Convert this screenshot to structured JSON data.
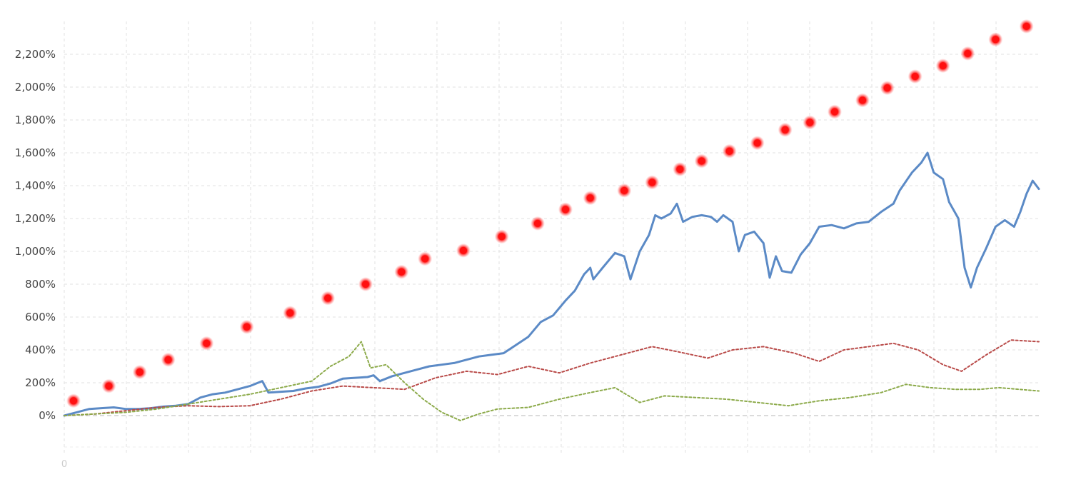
{
  "chart_data": {
    "type": "line",
    "title": "",
    "xlabel": "",
    "ylabel": "",
    "grid": true,
    "ylim": [
      -200,
      2400
    ],
    "xlim": [
      0,
      15.75
    ],
    "x_tick_labels": [
      "0"
    ],
    "y_ticks": [
      {
        "value": 0,
        "label": "0%"
      },
      {
        "value": 200,
        "label": "200%"
      },
      {
        "value": 400,
        "label": "400%"
      },
      {
        "value": 600,
        "label": "600%"
      },
      {
        "value": 800,
        "label": "800%"
      },
      {
        "value": 1000,
        "label": "1,000%"
      },
      {
        "value": 1200,
        "label": "1,200%"
      },
      {
        "value": 1400,
        "label": "1,400%"
      },
      {
        "value": 1600,
        "label": "1,600%"
      },
      {
        "value": 1800,
        "label": "1,800%"
      },
      {
        "value": 2000,
        "label": "2,000%"
      },
      {
        "value": 2200,
        "label": "2,200%"
      }
    ],
    "series": [
      {
        "kind": "solid-line",
        "color": "#5b8ac6",
        "points": [
          [
            0,
            0
          ],
          [
            0.2,
            20
          ],
          [
            0.4,
            40
          ],
          [
            0.6,
            45
          ],
          [
            0.8,
            50
          ],
          [
            1.0,
            40
          ],
          [
            1.2,
            40
          ],
          [
            1.4,
            45
          ],
          [
            1.6,
            55
          ],
          [
            1.8,
            60
          ],
          [
            2.0,
            70
          ],
          [
            2.2,
            110
          ],
          [
            2.4,
            130
          ],
          [
            2.6,
            140
          ],
          [
            2.8,
            160
          ],
          [
            3.0,
            180
          ],
          [
            3.1,
            195
          ],
          [
            3.2,
            210
          ],
          [
            3.3,
            140
          ],
          [
            3.5,
            145
          ],
          [
            3.7,
            150
          ],
          [
            3.9,
            165
          ],
          [
            4.1,
            175
          ],
          [
            4.3,
            195
          ],
          [
            4.5,
            225
          ],
          [
            4.7,
            230
          ],
          [
            4.9,
            235
          ],
          [
            5.0,
            245
          ],
          [
            5.1,
            210
          ],
          [
            5.3,
            240
          ],
          [
            5.5,
            260
          ],
          [
            5.7,
            280
          ],
          [
            5.9,
            300
          ],
          [
            6.1,
            310
          ],
          [
            6.3,
            320
          ],
          [
            6.5,
            340
          ],
          [
            6.7,
            360
          ],
          [
            6.9,
            370
          ],
          [
            7.1,
            380
          ],
          [
            7.3,
            430
          ],
          [
            7.5,
            480
          ],
          [
            7.7,
            570
          ],
          [
            7.9,
            610
          ],
          [
            8.1,
            700
          ],
          [
            8.25,
            760
          ],
          [
            8.4,
            860
          ],
          [
            8.5,
            900
          ],
          [
            8.55,
            830
          ],
          [
            8.7,
            900
          ],
          [
            8.9,
            990
          ],
          [
            9.05,
            970
          ],
          [
            9.15,
            830
          ],
          [
            9.3,
            1000
          ],
          [
            9.45,
            1100
          ],
          [
            9.55,
            1220
          ],
          [
            9.65,
            1200
          ],
          [
            9.8,
            1230
          ],
          [
            9.9,
            1290
          ],
          [
            10.0,
            1180
          ],
          [
            10.15,
            1210
          ],
          [
            10.3,
            1220
          ],
          [
            10.45,
            1210
          ],
          [
            10.55,
            1180
          ],
          [
            10.65,
            1220
          ],
          [
            10.8,
            1180
          ],
          [
            10.9,
            1000
          ],
          [
            11.0,
            1100
          ],
          [
            11.15,
            1120
          ],
          [
            11.3,
            1050
          ],
          [
            11.4,
            840
          ],
          [
            11.5,
            970
          ],
          [
            11.6,
            880
          ],
          [
            11.75,
            870
          ],
          [
            11.9,
            980
          ],
          [
            12.05,
            1050
          ],
          [
            12.2,
            1150
          ],
          [
            12.4,
            1160
          ],
          [
            12.6,
            1140
          ],
          [
            12.8,
            1170
          ],
          [
            13.0,
            1180
          ],
          [
            13.2,
            1240
          ],
          [
            13.4,
            1290
          ],
          [
            13.5,
            1370
          ],
          [
            13.7,
            1480
          ],
          [
            13.85,
            1540
          ],
          [
            13.95,
            1600
          ],
          [
            14.05,
            1480
          ],
          [
            14.2,
            1440
          ],
          [
            14.3,
            1300
          ],
          [
            14.45,
            1200
          ],
          [
            14.55,
            900
          ],
          [
            14.65,
            780
          ],
          [
            14.75,
            900
          ],
          [
            14.9,
            1020
          ],
          [
            15.05,
            1150
          ],
          [
            15.2,
            1190
          ],
          [
            15.35,
            1150
          ],
          [
            15.45,
            1240
          ],
          [
            15.55,
            1350
          ],
          [
            15.65,
            1430
          ],
          [
            15.75,
            1380
          ]
        ]
      },
      {
        "kind": "dotted-line",
        "color": "#b94a48",
        "points": [
          [
            0,
            0
          ],
          [
            0.5,
            10
          ],
          [
            1.0,
            30
          ],
          [
            1.5,
            50
          ],
          [
            2.0,
            60
          ],
          [
            2.5,
            55
          ],
          [
            3.0,
            60
          ],
          [
            3.5,
            100
          ],
          [
            4.0,
            150
          ],
          [
            4.5,
            180
          ],
          [
            5.0,
            170
          ],
          [
            5.5,
            160
          ],
          [
            6.0,
            230
          ],
          [
            6.5,
            270
          ],
          [
            7.0,
            250
          ],
          [
            7.5,
            300
          ],
          [
            8.0,
            260
          ],
          [
            8.5,
            320
          ],
          [
            9.0,
            370
          ],
          [
            9.5,
            420
          ],
          [
            9.9,
            390
          ],
          [
            10.4,
            350
          ],
          [
            10.8,
            400
          ],
          [
            11.3,
            420
          ],
          [
            11.8,
            380
          ],
          [
            12.2,
            330
          ],
          [
            12.6,
            400
          ],
          [
            13.0,
            420
          ],
          [
            13.4,
            440
          ],
          [
            13.8,
            400
          ],
          [
            14.2,
            310
          ],
          [
            14.5,
            270
          ],
          [
            14.9,
            370
          ],
          [
            15.3,
            460
          ],
          [
            15.75,
            450
          ]
        ]
      },
      {
        "kind": "dotted-line",
        "color": "#8caa4a",
        "points": [
          [
            0,
            0
          ],
          [
            0.5,
            10
          ],
          [
            1.0,
            20
          ],
          [
            1.5,
            40
          ],
          [
            2.0,
            70
          ],
          [
            2.5,
            100
          ],
          [
            3.0,
            130
          ],
          [
            3.5,
            170
          ],
          [
            4.0,
            210
          ],
          [
            4.3,
            300
          ],
          [
            4.6,
            360
          ],
          [
            4.8,
            450
          ],
          [
            4.95,
            290
          ],
          [
            5.2,
            310
          ],
          [
            5.5,
            200
          ],
          [
            5.8,
            100
          ],
          [
            6.1,
            20
          ],
          [
            6.4,
            -30
          ],
          [
            6.7,
            10
          ],
          [
            7.0,
            40
          ],
          [
            7.5,
            50
          ],
          [
            8.0,
            100
          ],
          [
            8.5,
            140
          ],
          [
            8.9,
            170
          ],
          [
            9.3,
            80
          ],
          [
            9.7,
            120
          ],
          [
            10.2,
            110
          ],
          [
            10.7,
            100
          ],
          [
            11.2,
            80
          ],
          [
            11.7,
            60
          ],
          [
            12.2,
            90
          ],
          [
            12.7,
            110
          ],
          [
            13.2,
            140
          ],
          [
            13.6,
            190
          ],
          [
            14.0,
            170
          ],
          [
            14.4,
            160
          ],
          [
            14.8,
            160
          ],
          [
            15.1,
            170
          ],
          [
            15.75,
            150
          ]
        ]
      },
      {
        "kind": "markers",
        "color": "#ff1010",
        "points": [
          [
            0.15,
            90
          ],
          [
            0.72,
            180
          ],
          [
            1.22,
            265
          ],
          [
            1.68,
            340
          ],
          [
            2.3,
            440
          ],
          [
            2.95,
            540
          ],
          [
            3.65,
            625
          ],
          [
            4.26,
            715
          ],
          [
            4.87,
            800
          ],
          [
            5.45,
            875
          ],
          [
            5.83,
            955
          ],
          [
            6.45,
            1005
          ],
          [
            7.07,
            1090
          ],
          [
            7.65,
            1170
          ],
          [
            8.1,
            1255
          ],
          [
            8.5,
            1325
          ],
          [
            9.05,
            1370
          ],
          [
            9.5,
            1420
          ],
          [
            9.95,
            1500
          ],
          [
            10.3,
            1550
          ],
          [
            10.75,
            1610
          ],
          [
            11.2,
            1660
          ],
          [
            11.65,
            1740
          ],
          [
            12.05,
            1785
          ],
          [
            12.45,
            1850
          ],
          [
            12.9,
            1920
          ],
          [
            13.3,
            1995
          ],
          [
            13.75,
            2065
          ],
          [
            14.2,
            2130
          ],
          [
            14.6,
            2205
          ],
          [
            15.05,
            2290
          ],
          [
            15.55,
            2370
          ]
        ]
      }
    ]
  }
}
